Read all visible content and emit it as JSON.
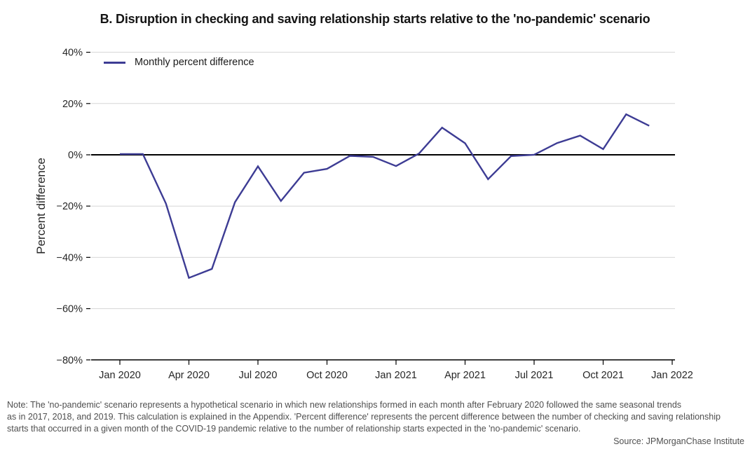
{
  "title": "B. Disruption in checking and saving relationship starts relative to the 'no-pandemic' scenario",
  "y_axis_title": "Percent difference",
  "legend": {
    "label": "Monthly percent difference"
  },
  "note": {
    "lines": [
      "Note: The 'no-pandemic' scenario represents a hypothetical scenario in which new relationships formed in each month after February 2020 followed the same seasonal trends",
      "as in 2017, 2018, and 2019. This calculation is explained in the Appendix. 'Percent difference' represents the percent difference between the number of checking and saving relationship",
      "starts that occurred in a given month of the COVID-19 pandemic relative to the number of relationship starts expected in the 'no-pandemic' scenario."
    ]
  },
  "source": "Source: JPMorganChase Institute",
  "colors": {
    "line": "#3d3c94",
    "grid": "#d6d6d6",
    "zero_line": "#000000",
    "axis": "#000000",
    "tick_text": "#262626"
  },
  "chart_data": {
    "type": "line",
    "title": "B. Disruption in checking and saving relationship starts relative to the 'no-pandemic' scenario",
    "ylabel": "Percent difference",
    "ylim": [
      -80,
      40
    ],
    "grid": "horizontal",
    "legend_position": "top-left inside",
    "x": [
      "Jan 2020",
      "Feb 2020",
      "Mar 2020",
      "Apr 2020",
      "May 2020",
      "Jun 2020",
      "Jul 2020",
      "Aug 2020",
      "Sep 2020",
      "Oct 2020",
      "Nov 2020",
      "Dec 2020",
      "Jan 2021",
      "Feb 2021",
      "Mar 2021",
      "Apr 2021",
      "May 2021",
      "Jun 2021",
      "Jul 2021",
      "Aug 2021",
      "Sep 2021",
      "Oct 2021",
      "Nov 2021",
      "Dec 2021"
    ],
    "series": [
      {
        "name": "Monthly percent difference",
        "values": [
          0.3,
          0.3,
          -19,
          -48,
          -44.5,
          -18.5,
          -4.5,
          -18,
          -7,
          -5.5,
          -0.4,
          -0.8,
          -4.4,
          0.5,
          10.6,
          4.5,
          -9.5,
          -0.5,
          0,
          4.6,
          7.5,
          2.2,
          15.8,
          11.3
        ]
      }
    ],
    "x_ticks": {
      "indices": [
        0,
        3,
        6,
        9,
        12,
        15,
        18,
        21,
        24
      ],
      "labels": [
        "Jan 2020",
        "Apr 2020",
        "Jul 2020",
        "Oct 2020",
        "Jan 2021",
        "Apr 2021",
        "Jul 2021",
        "Oct 2021",
        "Jan 2022"
      ]
    },
    "y_ticks": {
      "values": [
        40,
        20,
        0,
        -20,
        -40,
        -60,
        -80
      ],
      "labels": [
        "40%",
        "20%",
        "0%",
        "−20%",
        "−40%",
        "−60%",
        "−80%"
      ]
    }
  }
}
